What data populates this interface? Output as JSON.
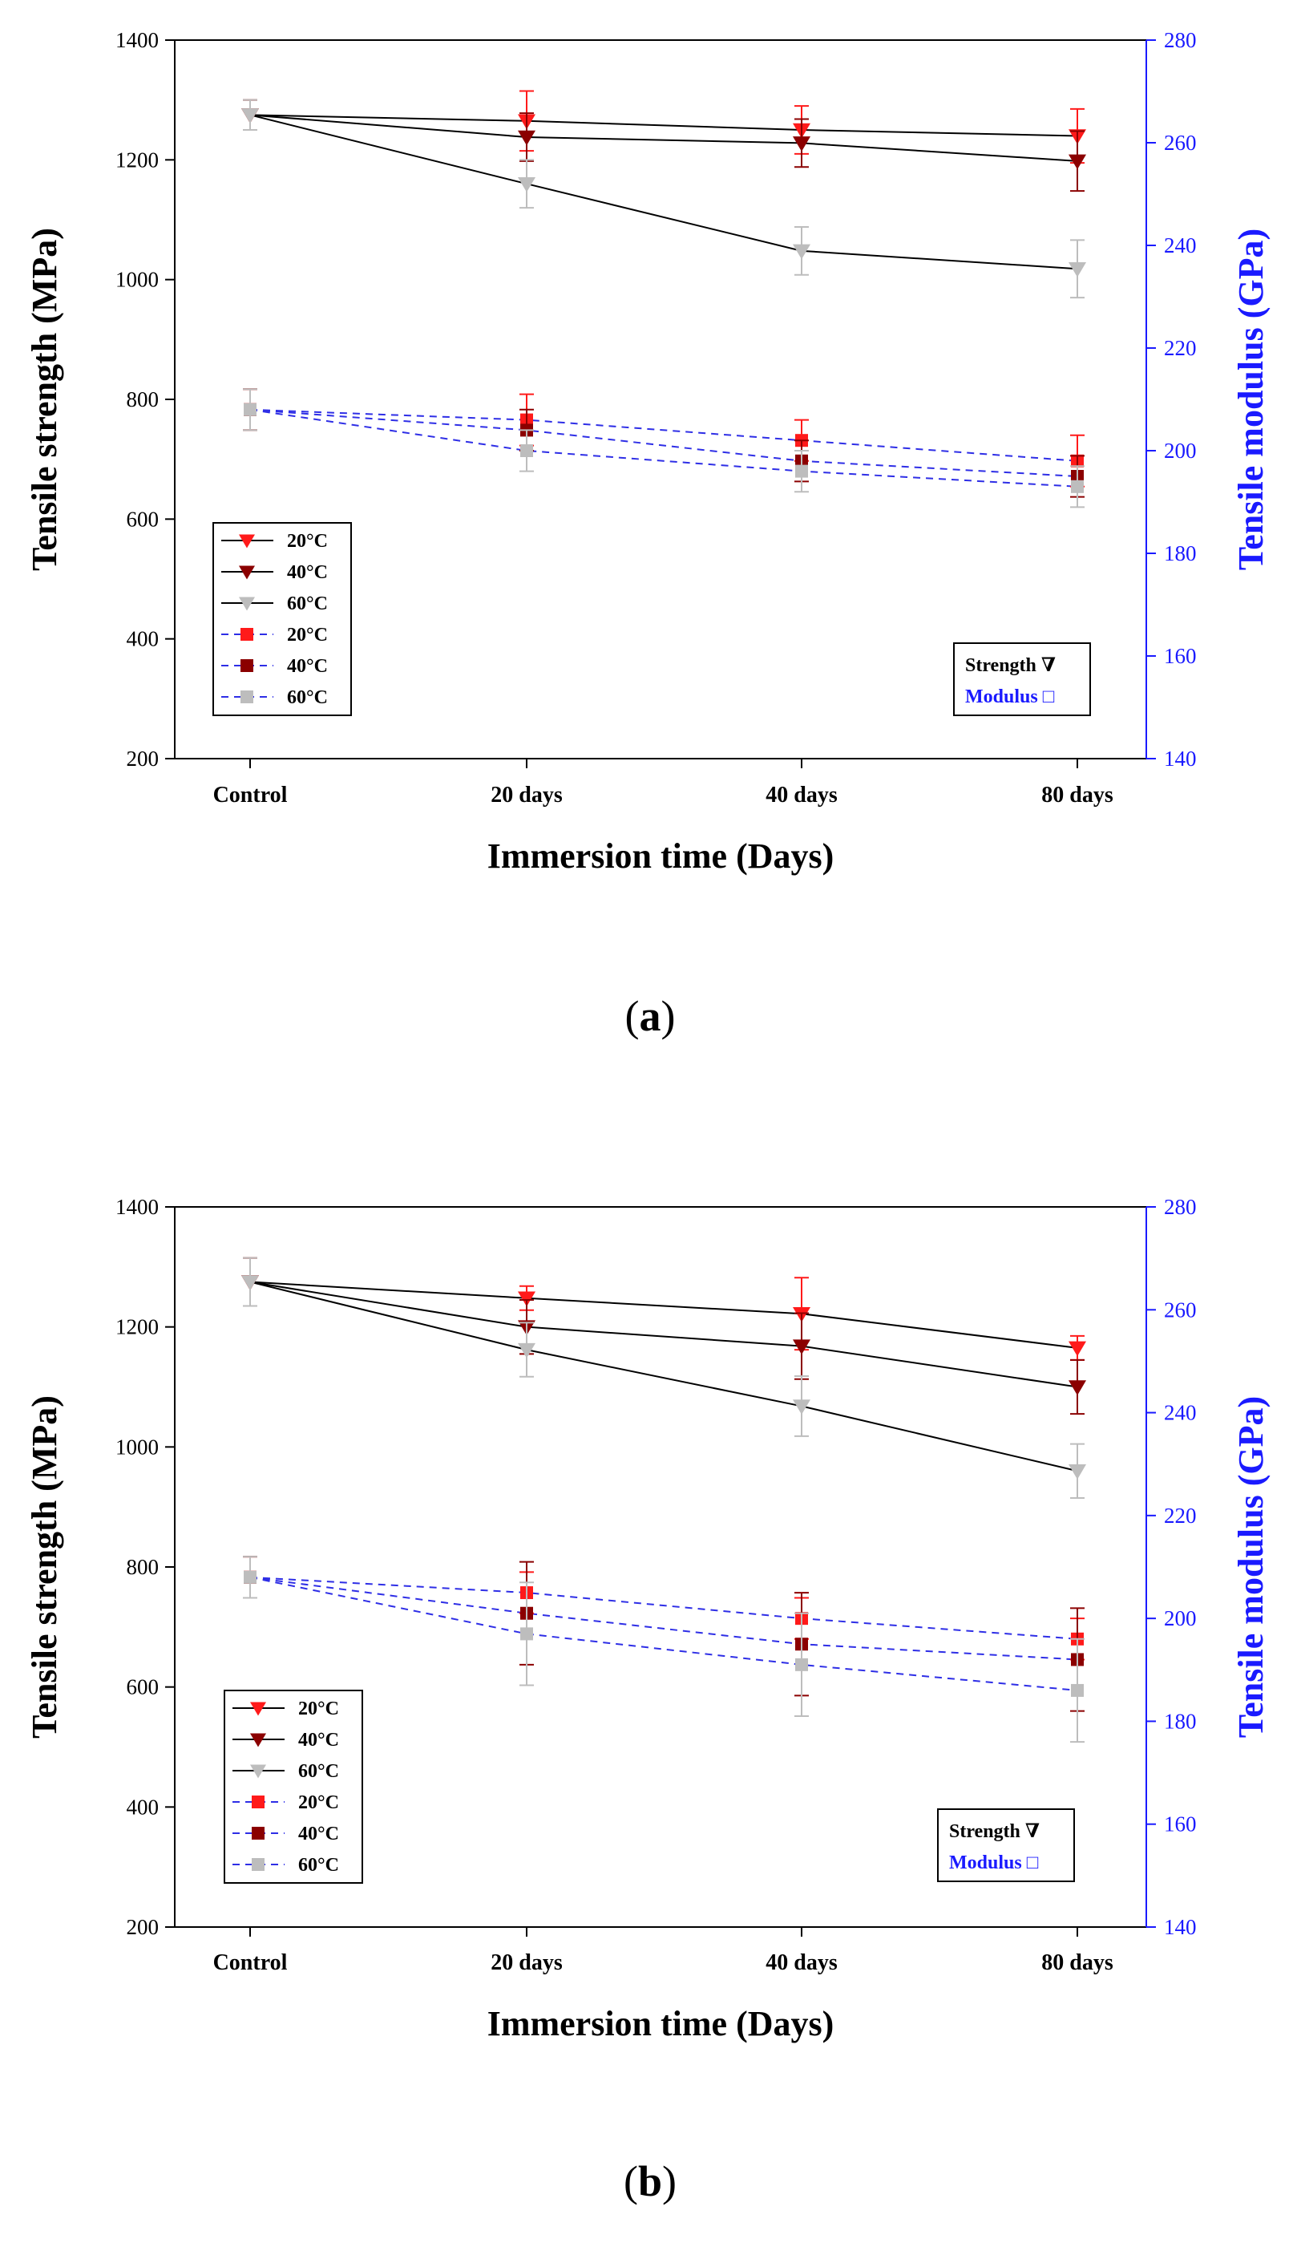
{
  "colors": {
    "axis": "#000000",
    "right_axis": "#1a1aff",
    "strength_line": "#000000",
    "modulus_line": "#2e2ee6",
    "c20": "#ff1a1a",
    "c40": "#8b0000",
    "c60": "#bdbdbd"
  },
  "chart_data": [
    {
      "type": "line",
      "panel_label": "(a)",
      "panel_letter": "a",
      "categories": [
        "Control",
        "20 days",
        "40 days",
        "80 days"
      ],
      "xlabel": "Immersion time (Days)",
      "ylabel": "Tensile strength (MPa)",
      "y2label": "Tensile modulus (GPa)",
      "ylim": [
        200,
        1400
      ],
      "yticks": [
        200,
        400,
        600,
        800,
        1000,
        1200,
        1400
      ],
      "y2lim": [
        140,
        280
      ],
      "y2ticks": [
        140,
        160,
        180,
        200,
        220,
        240,
        260,
        280
      ],
      "legend": [
        "20°C",
        "40°C",
        "60°C",
        "20°C",
        "40°C",
        "60°C"
      ],
      "legend_box": [
        "Strength ∇",
        "Modulus □"
      ],
      "strength_series": [
        {
          "name": "20°C",
          "values": [
            1275,
            1265,
            1250,
            1240
          ],
          "errors": [
            25,
            50,
            40,
            45
          ]
        },
        {
          "name": "40°C",
          "values": [
            1275,
            1238,
            1228,
            1198
          ],
          "errors": [
            25,
            40,
            40,
            50
          ]
        },
        {
          "name": "60°C",
          "values": [
            1275,
            1160,
            1048,
            1018
          ],
          "errors": [
            25,
            40,
            40,
            48
          ]
        }
      ],
      "modulus_series": [
        {
          "name": "20°C",
          "values": [
            208,
            206,
            202,
            198
          ],
          "errors": [
            4,
            5,
            4,
            5
          ]
        },
        {
          "name": "40°C",
          "values": [
            208,
            204,
            198,
            195
          ],
          "errors": [
            4,
            4,
            4,
            4
          ]
        },
        {
          "name": "60°C",
          "values": [
            208,
            200,
            196,
            193
          ],
          "errors": [
            4,
            4,
            4,
            4
          ]
        }
      ]
    },
    {
      "type": "line",
      "panel_label": "(b)",
      "panel_letter": "b",
      "categories": [
        "Control",
        "20 days",
        "40 days",
        "80 days"
      ],
      "xlabel": "Immersion time (Days)",
      "ylabel": "Tensile strength (MPa)",
      "y2label": "Tensile modulus (GPa)",
      "ylim": [
        200,
        1400
      ],
      "yticks": [
        200,
        400,
        600,
        800,
        1000,
        1200,
        1400
      ],
      "y2lim": [
        140,
        280
      ],
      "y2ticks": [
        140,
        160,
        180,
        200,
        220,
        240,
        260,
        280
      ],
      "legend": [
        "20°C",
        "40°C",
        "60°C",
        "20°C",
        "40°C",
        "60°C"
      ],
      "legend_box": [
        "Strength ∇",
        "Modulus □"
      ],
      "strength_series": [
        {
          "name": "20°C",
          "values": [
            1275,
            1248,
            1222,
            1165
          ],
          "errors": [
            40,
            20,
            60,
            20
          ]
        },
        {
          "name": "40°C",
          "values": [
            1275,
            1200,
            1168,
            1100
          ],
          "errors": [
            40,
            45,
            55,
            45
          ]
        },
        {
          "name": "60°C",
          "values": [
            1275,
            1162,
            1068,
            960
          ],
          "errors": [
            40,
            45,
            50,
            45
          ]
        }
      ],
      "modulus_series": [
        {
          "name": "20°C",
          "values": [
            208,
            205,
            200,
            196
          ],
          "errors": [
            4,
            4,
            4,
            4
          ]
        },
        {
          "name": "40°C",
          "values": [
            208,
            201,
            195,
            192
          ],
          "errors": [
            4,
            10,
            10,
            10
          ]
        },
        {
          "name": "60°C",
          "values": [
            208,
            197,
            191,
            186
          ],
          "errors": [
            4,
            10,
            10,
            10
          ]
        }
      ]
    }
  ]
}
